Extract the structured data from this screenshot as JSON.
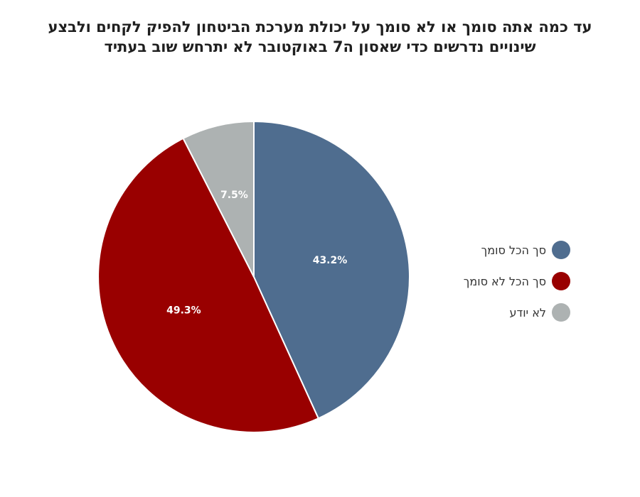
{
  "title_lines": [
    "עד כמה אתה סומך או לא סומך על יכולת מערכת הביטחון להפיק לקחים ולבצע",
    "שינויים נדרשים כדי שאסון ה7 באוקטובר לא יתרחש שוב בעתיד"
  ],
  "chart_data": {
    "type": "pie",
    "title": "עד כמה אתה סומך או לא סומך על יכולת מערכת הביטחון להפיק לקחים ולבצע שינויים נדרשים כדי שאסון ה7 באוקטובר לא יתרחש שוב בעתיד",
    "start_angle_deg": 0,
    "direction": "clockwise",
    "legend_position": "right",
    "slices": [
      {
        "label": "סך הכל סומך",
        "value": 43.2,
        "display": "43.2%",
        "color": "#4f6d8f"
      },
      {
        "label": "סך הכל לא סומך",
        "value": 49.3,
        "display": "49.3%",
        "color": "#990000"
      },
      {
        "label": "לא יודע",
        "value": 7.5,
        "display": "7.5%",
        "color": "#adb2b2"
      }
    ]
  }
}
